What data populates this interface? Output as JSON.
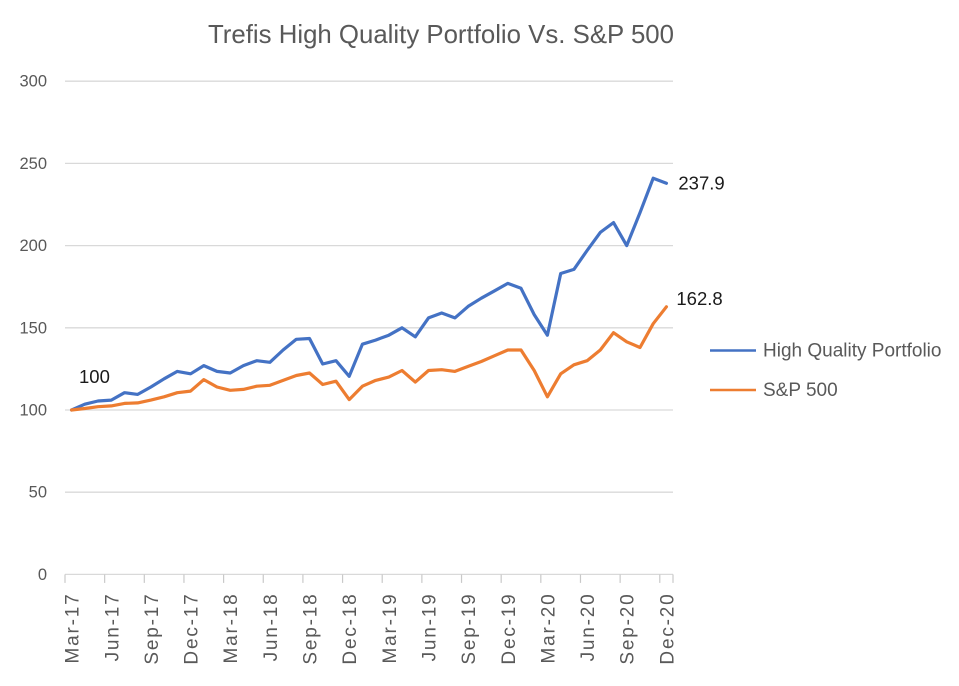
{
  "chart_data": {
    "type": "line",
    "title": "Trefis High Quality Portfolio Vs. S&P 500",
    "categories": [
      "Mar-17",
      "Apr-17",
      "May-17",
      "Jun-17",
      "Jul-17",
      "Aug-17",
      "Sep-17",
      "Oct-17",
      "Nov-17",
      "Dec-17",
      "Jan-18",
      "Feb-18",
      "Mar-18",
      "Apr-18",
      "May-18",
      "Jun-18",
      "Jul-18",
      "Aug-18",
      "Sep-18",
      "Oct-18",
      "Nov-18",
      "Dec-18",
      "Jan-19",
      "Feb-19",
      "Mar-19",
      "Apr-19",
      "May-19",
      "Jun-19",
      "Jul-19",
      "Aug-19",
      "Sep-19",
      "Oct-19",
      "Nov-19",
      "Dec-19",
      "Jan-20",
      "Feb-20",
      "Mar-20",
      "Apr-20",
      "May-20",
      "Jun-20",
      "Jul-20",
      "Aug-20",
      "Sep-20",
      "Oct-20",
      "Nov-20",
      "Dec-20"
    ],
    "x_tick_label_every": 3,
    "series": [
      {
        "name": "High Quality Portfolio",
        "color": "#4472C4",
        "values": [
          100,
          103.5,
          105.5,
          106,
          110.5,
          109.5,
          114,
          119,
          123.5,
          122,
          127,
          123.5,
          122.5,
          127,
          130,
          129,
          136.5,
          143,
          143.5,
          128,
          130,
          120.5,
          140,
          142.5,
          145.5,
          150,
          144.5,
          156,
          159,
          156,
          163,
          168,
          172.5,
          177,
          174,
          158,
          145.5,
          183,
          185.5,
          197,
          208,
          214,
          200,
          220,
          241,
          237.9
        ]
      },
      {
        "name": "S&P 500",
        "color": "#ED7D31",
        "values": [
          100,
          100.9,
          102,
          102.5,
          104,
          104.3,
          106,
          108,
          110.5,
          111.5,
          118.5,
          114,
          112,
          112.5,
          114.5,
          115,
          118,
          121,
          122.5,
          115.5,
          117.5,
          106.3,
          114.5,
          118,
          120,
          124,
          117,
          124,
          124.5,
          123.5,
          126.5,
          129.5,
          133,
          136.5,
          136.5,
          124,
          108,
          122,
          127.5,
          130,
          136.5,
          147,
          141.5,
          138,
          152.5,
          162.8
        ]
      }
    ],
    "ylim": [
      0,
      300
    ],
    "y_tick_step": 50,
    "grid": true,
    "legend_position": "right",
    "annotations": [
      {
        "text": "100",
        "attach": "start"
      },
      {
        "text": "237.9",
        "attach": "end-series-0"
      },
      {
        "text": "162.8",
        "attach": "end-series-1"
      }
    ],
    "colors": {
      "title": "#595959",
      "axis_labels": "#595959",
      "gridline": "#D9D9D9",
      "annotation": "#1a1a1a"
    }
  }
}
